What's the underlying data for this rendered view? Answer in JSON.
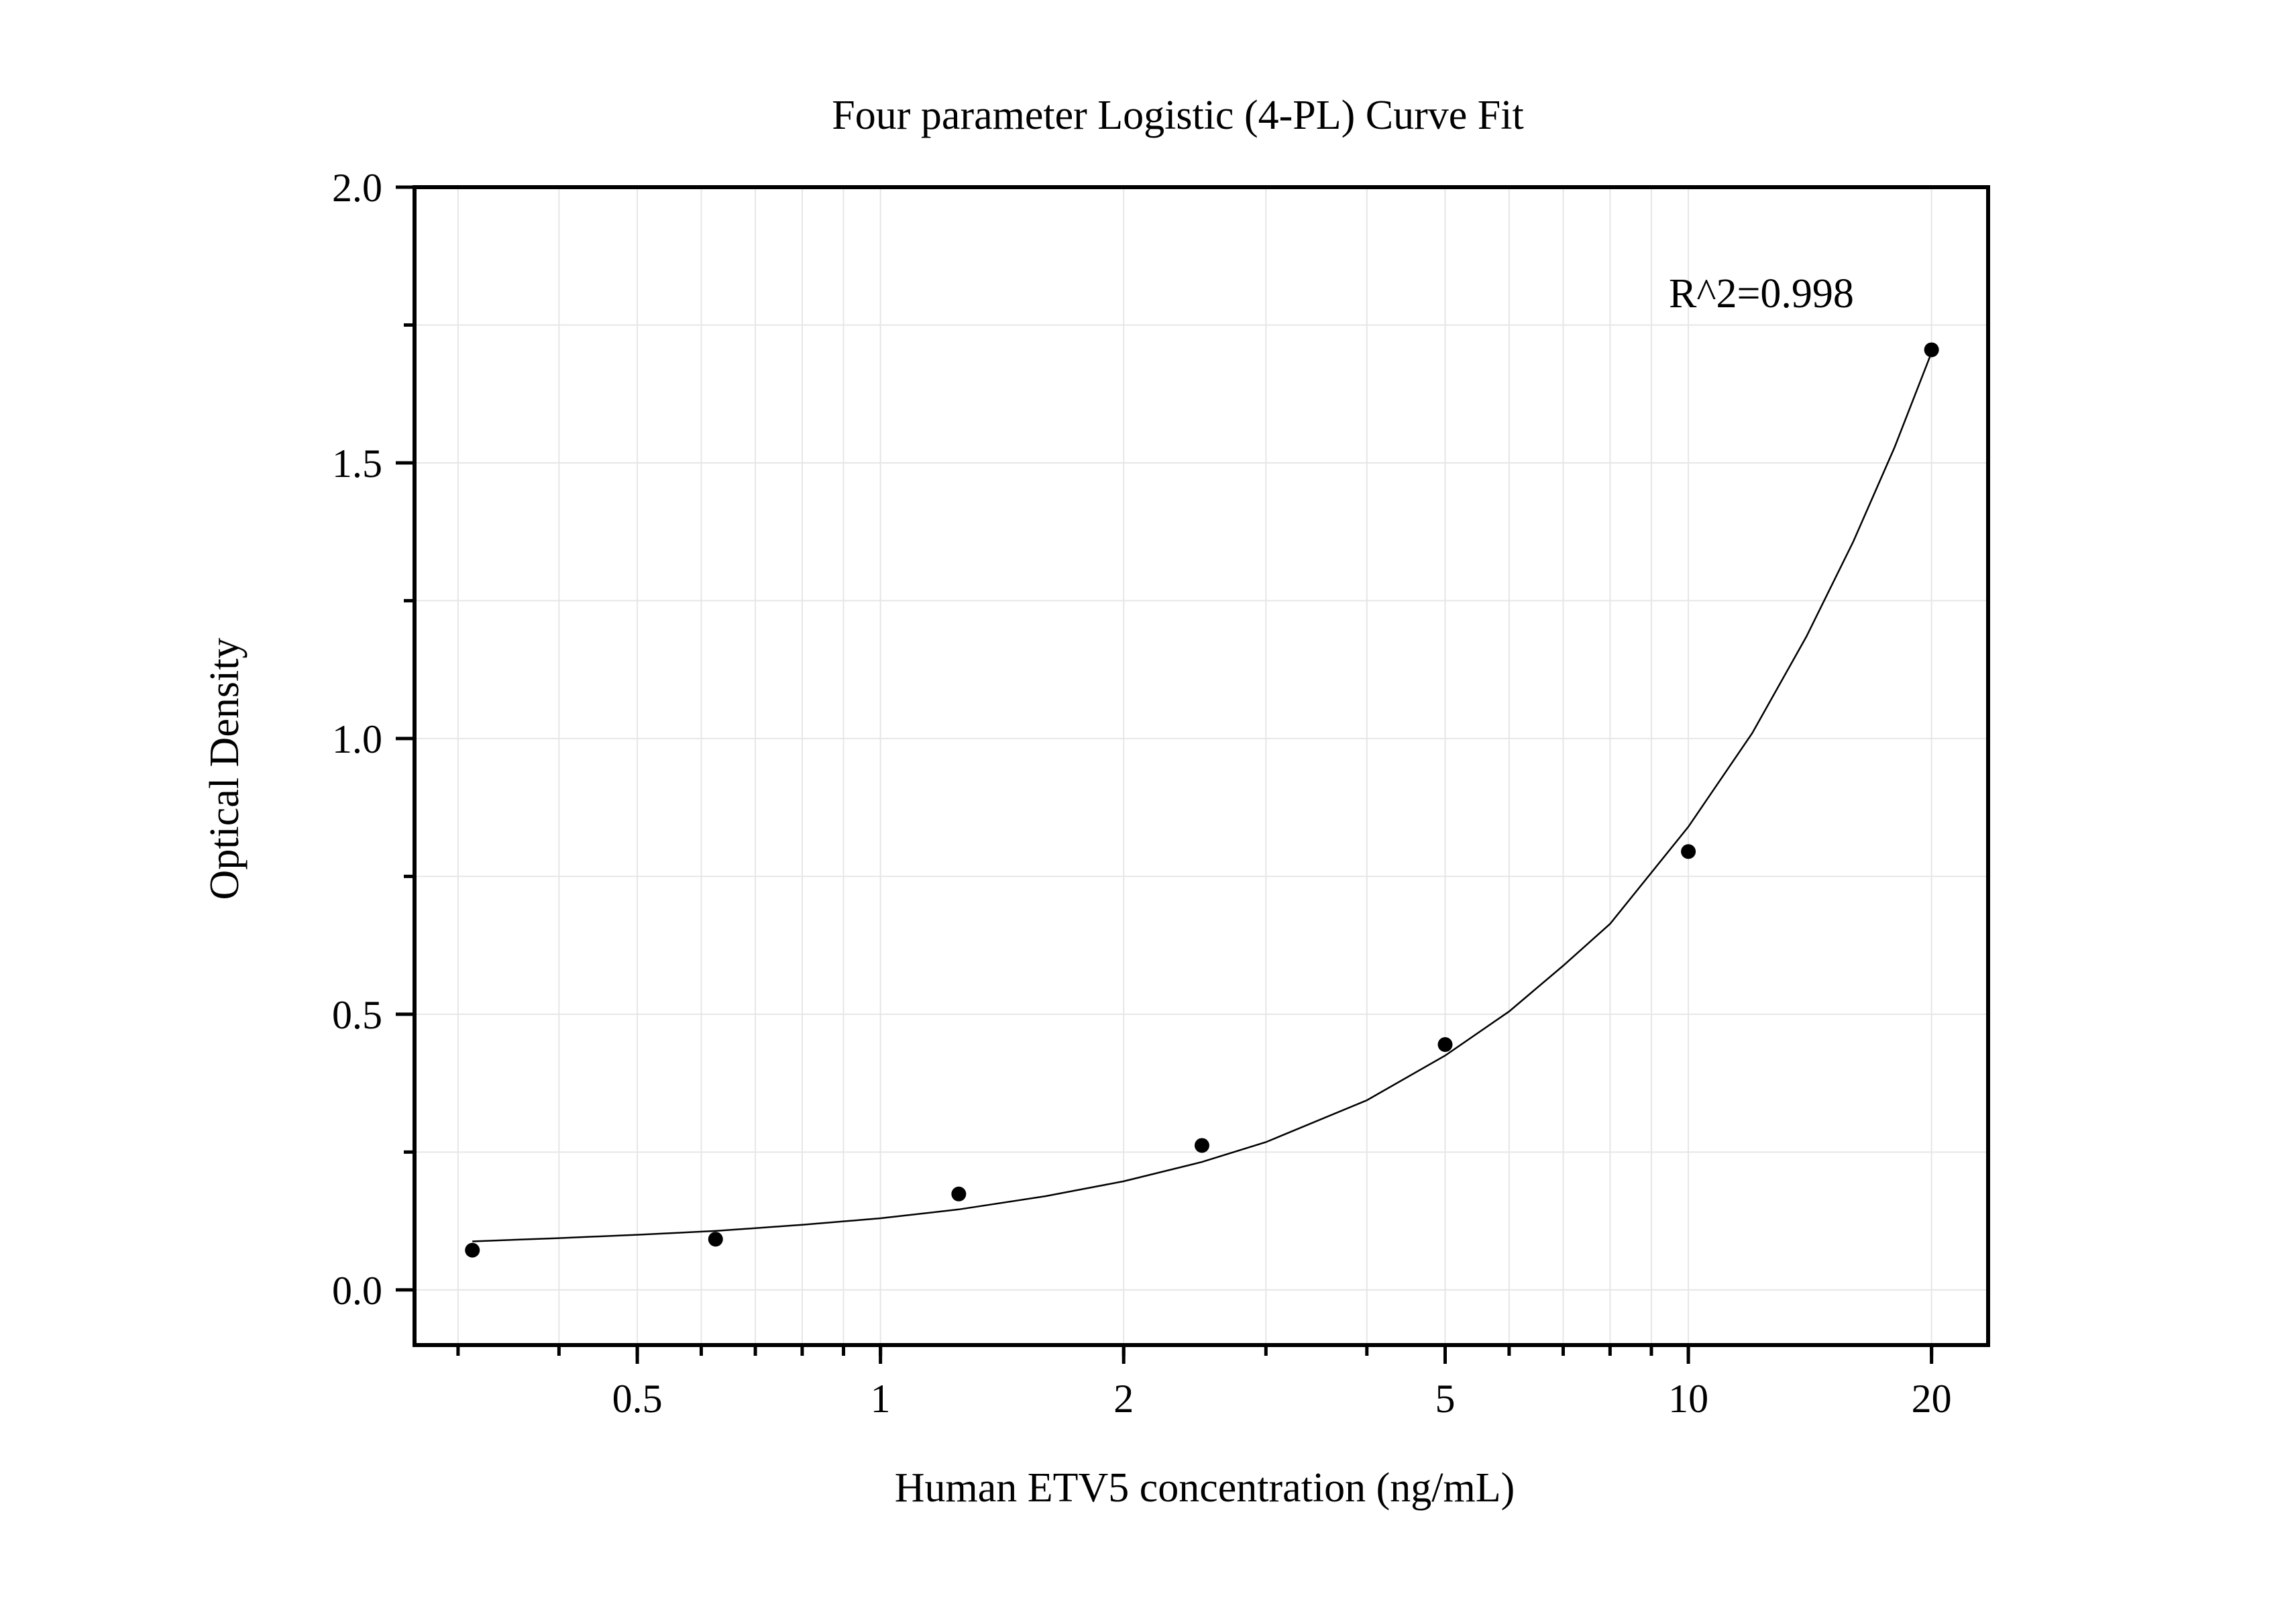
{
  "chart_data": {
    "type": "scatter",
    "title": "Four parameter Logistic (4-PL) Curve Fit",
    "xlabel": "Human ETV5 concentration (ng/mL)",
    "ylabel": "Optical Density",
    "x_scale": "log",
    "xlim": [
      0.265,
      23.5
    ],
    "ylim": [
      -0.1,
      2.0
    ],
    "x_ticks": [
      {
        "value": 0.5,
        "label": "0.5"
      },
      {
        "value": 1,
        "label": "1"
      },
      {
        "value": 2,
        "label": "2"
      },
      {
        "value": 5,
        "label": "5"
      },
      {
        "value": 10,
        "label": "10"
      },
      {
        "value": 20,
        "label": "20"
      }
    ],
    "y_ticks": [
      {
        "value": 0.0,
        "label": "0.0"
      },
      {
        "value": 0.5,
        "label": "0.5"
      },
      {
        "value": 1.0,
        "label": "1.0"
      },
      {
        "value": 1.5,
        "label": "1.5"
      },
      {
        "value": 2.0,
        "label": "2.0"
      }
    ],
    "grid": true,
    "series": [
      {
        "x": [
          0.3125,
          0.625,
          1.25,
          2.5,
          5,
          10,
          20
        ],
        "y": [
          0.072,
          0.092,
          0.174,
          0.262,
          0.445,
          0.795,
          1.705
        ]
      }
    ],
    "fit_curve": {
      "model": "4PL",
      "x": [
        0.3125,
        0.4,
        0.5,
        0.625,
        0.8,
        1,
        1.25,
        1.6,
        2,
        2.5,
        3,
        4,
        5,
        6,
        7,
        8,
        10,
        12,
        14,
        16,
        18,
        20
      ],
      "y": [
        0.088,
        0.094,
        0.1,
        0.107,
        0.118,
        0.13,
        0.146,
        0.17,
        0.197,
        0.232,
        0.268,
        0.344,
        0.425,
        0.505,
        0.588,
        0.664,
        0.84,
        1.01,
        1.185,
        1.357,
        1.528,
        1.7
      ]
    },
    "annotations": [
      {
        "text": "R^2=0.998"
      }
    ]
  }
}
